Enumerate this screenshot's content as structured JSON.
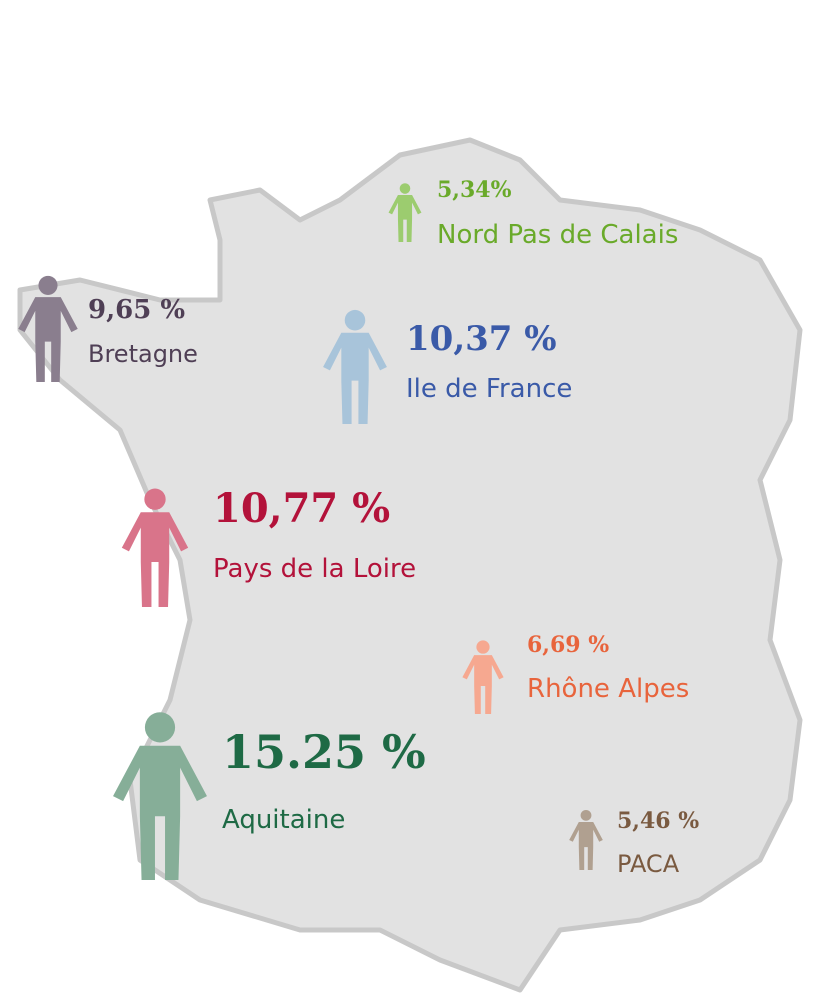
{
  "regions": [
    {
      "value": 5.34,
      "value_label": "5,34%",
      "name": "Nord Pas de Calais",
      "color": "#6aaa2a",
      "icon_color": "#9ccc6f"
    },
    {
      "value": 9.65,
      "value_label": "9,65 %",
      "name": "Bretagne",
      "color": "#4f3f55",
      "icon_color": "#8a7e8e"
    },
    {
      "value": 10.37,
      "value_label": "10,37 %",
      "name": "Ile de France",
      "color": "#3a5aa8",
      "icon_color": "#a8c4da"
    },
    {
      "value": 10.77,
      "value_label": "10,77 %",
      "name": "Pays de la Loire",
      "color": "#b3123a",
      "icon_color": "#d9748a"
    },
    {
      "value": 6.69,
      "value_label": "6,69 %",
      "name": "Rhône Alpes",
      "color": "#e8643c",
      "icon_color": "#f6a890"
    },
    {
      "value": 15.25,
      "value_label": "15.25 %",
      "name": "Aquitaine",
      "color": "#1e6a45",
      "icon_color": "#86ae98"
    },
    {
      "value": 5.46,
      "value_label": "5,46 %",
      "name": "PACA",
      "color": "#7a5a40",
      "icon_color": "#b0a090"
    }
  ]
}
